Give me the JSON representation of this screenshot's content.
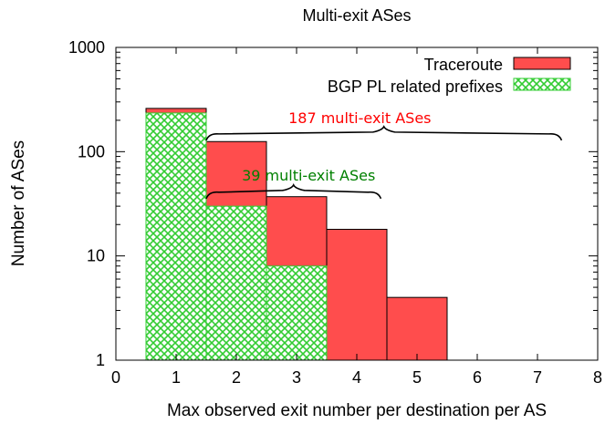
{
  "chart_data": {
    "type": "bar",
    "title": "Multi-exit ASes",
    "xlabel": "Max observed exit number per destination per AS",
    "ylabel": "Number of ASes",
    "xlim": [
      0,
      8
    ],
    "ylim": [
      1,
      1000
    ],
    "yscale": "log",
    "x_ticks": [
      "0",
      "1",
      "2",
      "3",
      "4",
      "5",
      "6",
      "7",
      "8"
    ],
    "y_ticks": [
      "1",
      "10",
      "100",
      "1000"
    ],
    "grid": false,
    "legend_position": "top-right",
    "categories": [
      "1",
      "2",
      "3",
      "4",
      "5"
    ],
    "series": [
      {
        "name": "Traceroute",
        "color": "#ff4d4d",
        "pattern": "solid",
        "x": [
          1,
          2,
          3,
          4,
          5
        ],
        "values": [
          260,
          125,
          37,
          18,
          4
        ]
      },
      {
        "name": "BGP PL related prefixes",
        "color": "#33cc33",
        "pattern": "crosshatch",
        "x": [
          1,
          2,
          3
        ],
        "values": [
          235,
          30,
          8
        ]
      }
    ],
    "annotations": [
      {
        "text": "187 multi-exit ASes",
        "color": "#ff0000",
        "x_range": [
          1.5,
          7.4
        ],
        "y": 145
      },
      {
        "text": "39 multi-exit ASes",
        "color": "#008000",
        "x_range": [
          1.5,
          4.4
        ],
        "y": 40
      }
    ]
  }
}
